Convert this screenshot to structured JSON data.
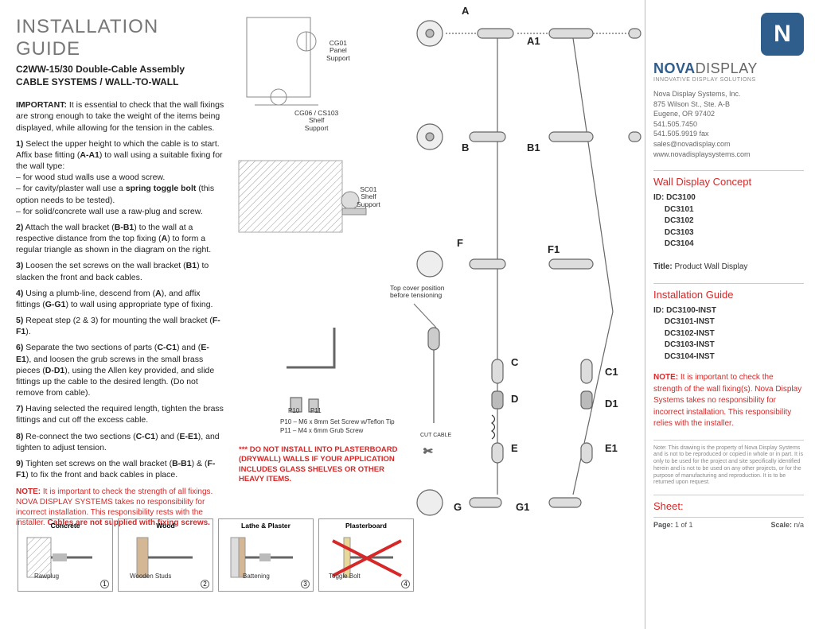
{
  "header": {
    "title": "INSTALLATION GUIDE",
    "subtitle": "C2WW-15/30 Double-Cable Assembly\nCABLE SYSTEMS / WALL-TO-WALL"
  },
  "instructions": {
    "important": "IMPORTANT: It is essential to check that the wall fixings are strong enough to take the weight of the items being displayed, while allowing for the tension in the cables.",
    "step1": "1) Select the upper height to which the cable is to start. Affix base fitting (A-A1) to wall using a suitable fixing for the wall type:",
    "step1a": "– for wood stud walls use a wood screw.",
    "step1b": "– for cavity/plaster wall use a spring toggle bolt (this option needs to be tested).",
    "step1c": "– for solid/concrete wall use a raw-plug and screw.",
    "step2": "2) Attach the wall bracket (B-B1) to the wall at a respective distance from the top fixing (A) to form a regular triangle as shown in the diagram on the right.",
    "step3": "3) Loosen the set screws on the wall bracket (B1) to slacken the front and back cables.",
    "step4": "4) Using a plumb-line, descend from (A), and affix fittings (G-G1) to wall using appropriate type of fixing.",
    "step5": "5) Repeat step (2 & 3) for mounting the wall bracket (F-F1).",
    "step6": "6) Separate the two sections of parts (C-C1) and (E-E1), and loosen the grub screws in the small brass pieces (D-D1), using the Allen key provided, and slide fittings up the cable to the desired length. (Do not remove from cable).",
    "step7": "7) Having selected the required length, tighten the brass fittings and cut off the excess cable.",
    "step8": "8) Re-connect the two sections (C-C1) and (E-E1), and tighten to adjust tension.",
    "step9": "9) Tighten set screws on the wall bracket (B-B1) & (F-F1) to fix the front and back cables in place.",
    "note": "NOTE: It is important to check the strength of all fixings. NOVA DISPLAY SYSTEMS takes no responsibility for incorrect installation. This responsibility rests with the installer. Cables are not supplied with fixing screws."
  },
  "wall_options": [
    {
      "label": "Concrete",
      "caption": "Rawplug",
      "num": "1"
    },
    {
      "label": "Wood",
      "caption": "Wooden Studs",
      "num": "2"
    },
    {
      "label": "Lathe & Plaster",
      "caption": "Battening",
      "num": "3"
    },
    {
      "label": "Plasterboard",
      "caption": "Toggle Bolt",
      "num": "4"
    }
  ],
  "diagram": {
    "warn": "*** DO NOT INSTALL INTO PLASTERBOARD (DRYWALL) WALLS IF YOUR APPLICATION INCLUDES GLASS SHELVES OR OTHER HEAVY ITEMS.",
    "supports": {
      "cg01": "CG01\nPanel\nSupport",
      "cg06": "CG06 / CS103\nShelf\nSupport",
      "sc01": "SC01\nShelf\nSupport"
    },
    "p10": "P10",
    "p11": "P11",
    "p10desc": "P10 – M6 x 8mm Set Screw w/Teflon Tip",
    "p11desc": "P11 – M4 x 6mm Grub Screw",
    "topcover": "Top cover position\nbefore tensioning",
    "cutcable": "CUT CABLE",
    "labels": {
      "A": "A",
      "A1": "A1",
      "B": "B",
      "B1": "B1",
      "C": "C",
      "C1": "C1",
      "D": "D",
      "D1": "D1",
      "E": "E",
      "E1": "E1",
      "F": "F",
      "F1": "F1",
      "G": "G",
      "G1": "G1"
    }
  },
  "sidebar": {
    "company": {
      "name_a": "NOVA",
      "name_b": "DISPLAY",
      "tagline": "INNOVATIVE DISPLAY SOLUTIONS",
      "lines": [
        "Nova Display Systems, Inc.",
        "875 Wilson St., Ste. A-B",
        "Eugene, OR 97402",
        "541.505.7450",
        "541.505.9919 fax",
        "sales@novadisplay.com",
        "www.novadisplaysystems.com"
      ]
    },
    "concept": {
      "heading": "Wall Display Concept",
      "id_label": "ID:",
      "ids": [
        "DC3100",
        "DC3101",
        "DC3102",
        "DC3103",
        "DC3104"
      ],
      "title_label": "Title:",
      "title": "Product Wall Display"
    },
    "guide": {
      "heading": "Installation Guide",
      "id_label": "ID:",
      "ids": [
        "DC3100-INST",
        "DC3101-INST",
        "DC3102-INST",
        "DC3103-INST",
        "DC3104-INST"
      ],
      "note": "NOTE: It is important to check the strength of the wall fixing(s). Nova Display Systems takes no responsibility for incorrect installation. This responsibility relies with the installer."
    },
    "fineprint": "Note: This drawing is the property of Nova Display Systems and is not to be reproduced or copied in whole or in part. It is only to be used for the project and site specifically identified herein and is not to be used on any other projects, or for the purpose of manufacturing and reproduction. It is to be returned upon request.",
    "sheet": {
      "heading": "Sheet:",
      "page_l": "Page:",
      "page": "1 of 1",
      "scale_l": "Scale:",
      "scale": "n/a"
    }
  },
  "colors": {
    "red": "#d62828",
    "blue": "#2f5d8c",
    "grey": "#777"
  }
}
